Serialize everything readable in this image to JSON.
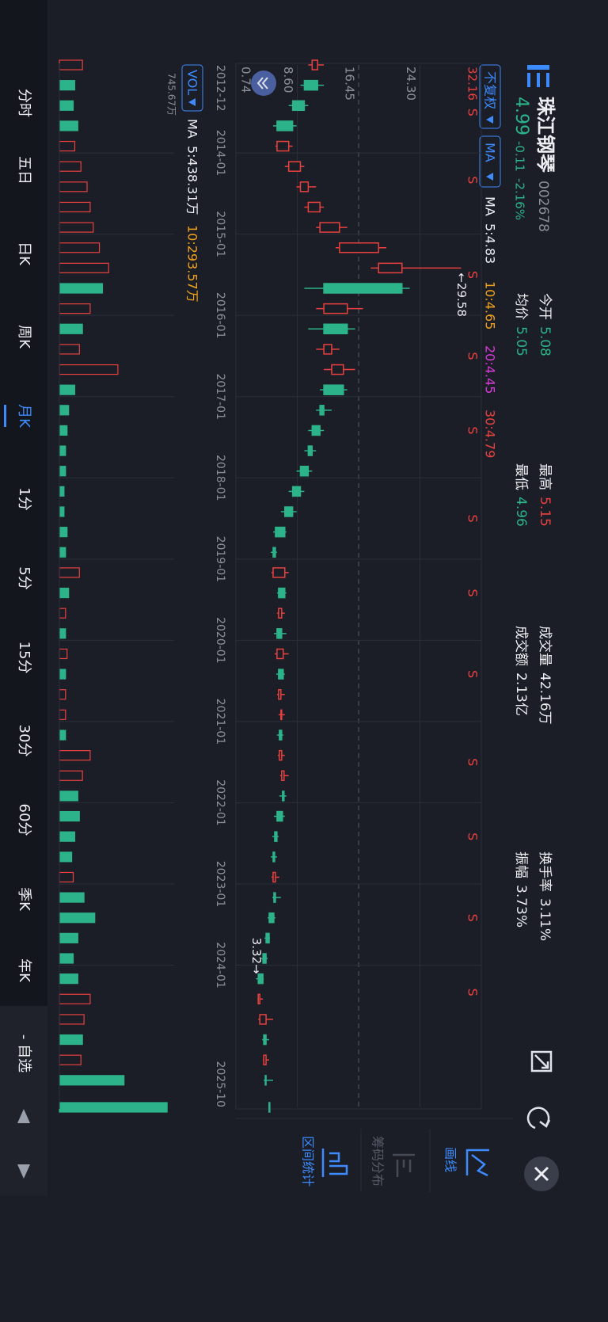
{
  "header": {
    "name": "珠江钢琴",
    "code": "002678",
    "price": "4.99",
    "change": "-0.11",
    "change_pct": "-2.16%",
    "stats": [
      {
        "label": "今开",
        "value": "5.08"
      },
      {
        "label": "最高",
        "value": "5.15"
      },
      {
        "label": "成交量",
        "value": "42.16万"
      },
      {
        "label": "换手率",
        "value": "3.11%"
      },
      {
        "label": "均价",
        "value": "5.05"
      },
      {
        "label": "最低",
        "value": "4.96"
      },
      {
        "label": "成交额",
        "value": "2.13亿"
      },
      {
        "label": "振幅",
        "value": "3.73%"
      }
    ]
  },
  "controls": {
    "adjust": "不复权",
    "indicator": "MA",
    "ma_label": "MA",
    "ma": [
      "5:4.83",
      "10:4.65",
      "20:4.45",
      "30:4.79"
    ],
    "vol": "VOL",
    "vol_ma_label": "MA",
    "vol_ma": [
      "5:438.31万",
      "10:293.57万"
    ]
  },
  "chart_data": {
    "type": "candlestick",
    "xlim": [
      "2012-12",
      "2025-10"
    ],
    "xticks": [
      "2012-12",
      "2014-01",
      "2015-01",
      "2016-01",
      "2017-01",
      "2018-01",
      "2019-01",
      "2020-01",
      "2021-01",
      "2022-01",
      "2023-01",
      "2024-01",
      "2025-10"
    ],
    "ylim": [
      0.74,
      32.16
    ],
    "yticks": [
      32.16,
      {
        "value": 24.3,
        "label": "24.30"
      },
      16.45,
      {
        "value": 8.6,
        "label": "8.60"
      },
      0.74
    ],
    "up_color": "#e8413f",
    "down_color": "#2cb38a",
    "candles": {
      "x": [
        "2012-12",
        "2013-03",
        "2013-06",
        "2013-09",
        "2013-12",
        "2014-03",
        "2014-06",
        "2014-09",
        "2014-12",
        "2015-03",
        "2015-06",
        "2015-09",
        "2015-12",
        "2016-03",
        "2016-06",
        "2016-09",
        "2016-12",
        "2017-03",
        "2017-06",
        "2017-09",
        "2017-12",
        "2018-03",
        "2018-06",
        "2018-09",
        "2018-12",
        "2019-03",
        "2019-06",
        "2019-09",
        "2019-12",
        "2020-03",
        "2020-06",
        "2020-09",
        "2020-12",
        "2021-03",
        "2021-06",
        "2021-09",
        "2021-12",
        "2022-03",
        "2022-06",
        "2022-09",
        "2022-12",
        "2023-03",
        "2023-06",
        "2023-09",
        "2023-12",
        "2024-03",
        "2024-06",
        "2024-09",
        "2024-12",
        "2025-03",
        "2025-06",
        "2025-10"
      ],
      "open": [
        10.5,
        11.2,
        9.5,
        8.0,
        6.0,
        7.5,
        9.0,
        10.0,
        11.5,
        14.0,
        19.0,
        22.0,
        12.0,
        15.0,
        12.0,
        13.0,
        14.5,
        12.0,
        11.5,
        10.5,
        10.0,
        9.0,
        8.0,
        7.0,
        5.8,
        5.5,
        7.0,
        6.2,
        6.6,
        6.0,
        6.8,
        6.2,
        6.5,
        6.6,
        6.3,
        6.6,
        6.9,
        6.7,
        6.0,
        5.7,
        5.5,
        5.8,
        5.6,
        5.0,
        4.6,
        4.2,
        3.6,
        3.8,
        4.6,
        4.3,
        4.6,
        5.08
      ],
      "close": [
        11.2,
        9.5,
        8.0,
        6.0,
        7.5,
        9.0,
        10.0,
        11.5,
        14.0,
        19.0,
        22.0,
        12.0,
        15.0,
        12.0,
        13.0,
        14.5,
        12.0,
        11.5,
        10.5,
        10.0,
        9.0,
        8.0,
        7.0,
        5.8,
        5.5,
        7.0,
        6.2,
        6.6,
        6.0,
        6.8,
        6.2,
        6.5,
        6.6,
        6.3,
        6.6,
        6.9,
        6.7,
        6.0,
        5.7,
        5.5,
        5.8,
        5.6,
        5.0,
        4.6,
        4.2,
        3.6,
        3.8,
        4.6,
        4.3,
        4.6,
        4.5,
        4.99
      ],
      "high": [
        12,
        12,
        10,
        8.5,
        8,
        9.5,
        11,
        12,
        15,
        20,
        29.58,
        23,
        17,
        16,
        14,
        16,
        15,
        13,
        12,
        11,
        10.5,
        9.5,
        8.5,
        7.2,
        6,
        7.5,
        7.2,
        7,
        7.2,
        7.5,
        7,
        7,
        7,
        6.8,
        7,
        7.5,
        7.2,
        7,
        6.2,
        6,
        6.3,
        6.5,
        5.8,
        5.1,
        4.8,
        4.3,
        4.2,
        5.5,
        5,
        5,
        5.5,
        5.15
      ],
      "low": [
        10,
        9,
        7.5,
        5.5,
        5.8,
        7,
        8.5,
        9.5,
        11,
        13.5,
        18,
        9.5,
        11,
        10,
        11,
        12,
        11.5,
        11,
        10,
        9.5,
        8.5,
        7.5,
        6.5,
        5.5,
        5.2,
        5.3,
        6,
        6,
        5.6,
        5.7,
        5.9,
        6,
        6.2,
        6,
        6.1,
        6.4,
        6.3,
        5.6,
        5.4,
        5.2,
        5.3,
        5.4,
        4.8,
        4.4,
        4.0,
        3.32,
        3.5,
        3.6,
        4.1,
        4.2,
        4.3,
        4.96
      ]
    },
    "max_marker": {
      "value": 29.58,
      "label": "←29.58"
    },
    "min_marker": {
      "value": 3.32,
      "label": "3.32→"
    },
    "signals": {
      "label": "S",
      "x": [
        "2013-07",
        "2014-05",
        "2015-07",
        "2016-07",
        "2017-06",
        "2018-07",
        "2019-06",
        "2020-06",
        "2021-07",
        "2022-06",
        "2023-06",
        "2024-05"
      ]
    },
    "volume": {
      "ylim": [
        0,
        745.67
      ],
      "yticks": [
        {
          "value": 745.67,
          "label": "745.67万"
        }
      ],
      "values": [
        150,
        100,
        90,
        120,
        100,
        140,
        180,
        200,
        220,
        260,
        320,
        280,
        200,
        150,
        130,
        380,
        100,
        60,
        50,
        40,
        40,
        30,
        30,
        50,
        40,
        130,
        60,
        40,
        40,
        50,
        40,
        40,
        40,
        40,
        200,
        150,
        120,
        130,
        100,
        80,
        90,
        160,
        230,
        120,
        90,
        120,
        200,
        160,
        150,
        140,
        420,
        700
      ]
    }
  },
  "tools": [
    "画线",
    "筹码分布",
    "区间统计"
  ],
  "tabs": [
    "分时",
    "五日",
    "日K",
    "周K",
    "月K",
    "1分",
    "5分",
    "15分",
    "30分",
    "60分",
    "季K",
    "年K",
    "- 自选"
  ],
  "active_tab": 4
}
